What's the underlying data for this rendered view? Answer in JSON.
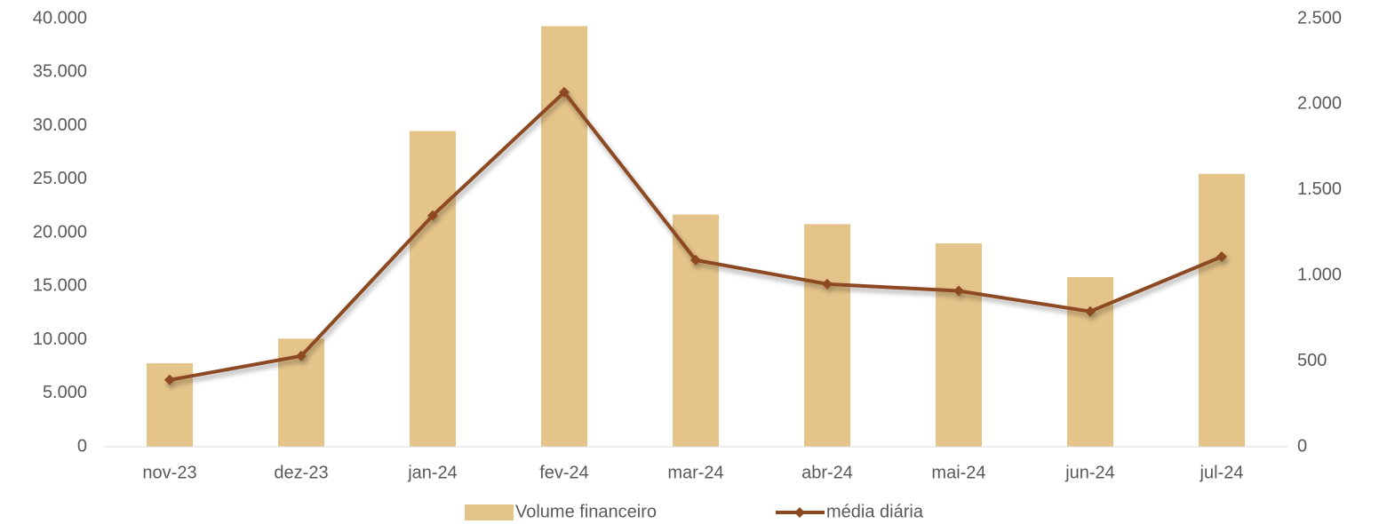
{
  "chart_data": {
    "type": "combo",
    "categories": [
      "nov-23",
      "dez-23",
      "jan-24",
      "fev-24",
      "mar-24",
      "abr-24",
      "mai-24",
      "jun-24",
      "jul-24"
    ],
    "series": [
      {
        "name": "Volume financeiro",
        "type": "bar",
        "color": "#e5c48a",
        "values": [
          7800,
          10100,
          29500,
          39300,
          21700,
          20800,
          19000,
          15850,
          25500
        ]
      },
      {
        "name": "média diária",
        "type": "line",
        "axis": "y2",
        "color": "#8c4a22",
        "values": [
          390,
          530,
          1350,
          2070,
          1090,
          950,
          910,
          790,
          1110
        ]
      }
    ],
    "ylim": [
      0,
      40000
    ],
    "yticks": [
      0,
      {
        "value": 5000,
        "label": "5.000"
      },
      {
        "value": 10000,
        "label": "10.000"
      },
      {
        "value": 15000,
        "label": "15.000"
      },
      {
        "value": 20000,
        "label": "20.000"
      },
      {
        "value": 25000,
        "label": "25.000"
      },
      {
        "value": 30000,
        "label": "30.000"
      },
      {
        "value": 35000,
        "label": "35.000"
      },
      {
        "value": 40000,
        "label": "40.000"
      }
    ],
    "y2lim": [
      0,
      2500
    ],
    "y2ticks": [
      0,
      500,
      {
        "value": 1000,
        "label": "1.000"
      },
      {
        "value": 1500,
        "label": "1.500"
      },
      {
        "value": 2000,
        "label": "2.000"
      },
      {
        "value": 2500,
        "label": "2.500"
      }
    ],
    "grid": false,
    "legend": "bottom"
  }
}
